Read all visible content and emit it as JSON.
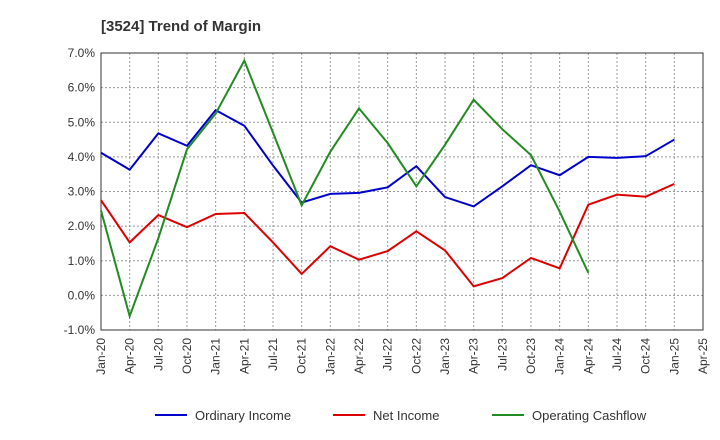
{
  "chart_data": {
    "type": "line",
    "title": "[3524]  Trend of Margin",
    "xlabel": "",
    "ylabel": "",
    "categories": [
      "Jan-20",
      "Apr-20",
      "Jul-20",
      "Oct-20",
      "Jan-21",
      "Apr-21",
      "Jul-21",
      "Oct-21",
      "Jan-22",
      "Apr-22",
      "Jul-22",
      "Oct-22",
      "Jan-23",
      "Apr-23",
      "Jul-23",
      "Oct-23",
      "Jan-24",
      "Apr-24",
      "Jul-24",
      "Oct-24",
      "Jan-25",
      "Apr-25"
    ],
    "y_ticks": [
      "7.0%",
      "6.0%",
      "5.0%",
      "4.0%",
      "3.0%",
      "2.0%",
      "1.0%",
      "0.0%",
      "-1.0%"
    ],
    "ylim": [
      -1.0,
      7.0
    ],
    "grid": true,
    "legend_position": "bottom",
    "series": [
      {
        "name": "Ordinary Income",
        "color": "#0000cc",
        "values": [
          4.12,
          3.63,
          4.68,
          4.32,
          5.35,
          4.9,
          3.75,
          2.68,
          2.93,
          2.96,
          3.12,
          3.73,
          2.84,
          2.57,
          3.15,
          3.76,
          3.47,
          4.0,
          3.97,
          4.02,
          4.5,
          null
        ]
      },
      {
        "name": "Net Income",
        "color": "#dd0000",
        "values": [
          2.75,
          1.53,
          2.32,
          1.97,
          2.35,
          2.38,
          1.53,
          0.62,
          1.42,
          1.03,
          1.28,
          1.85,
          1.3,
          0.26,
          0.5,
          1.08,
          0.78,
          2.62,
          2.91,
          2.85,
          3.22,
          null
        ]
      },
      {
        "name": "Operating Cashflow",
        "color": "#228b22",
        "values": [
          2.45,
          -0.6,
          1.65,
          4.22,
          5.25,
          6.78,
          4.7,
          2.6,
          4.15,
          5.4,
          4.4,
          3.15,
          4.35,
          5.65,
          4.8,
          4.05,
          2.42,
          0.65,
          null,
          null,
          null,
          null
        ]
      }
    ]
  }
}
